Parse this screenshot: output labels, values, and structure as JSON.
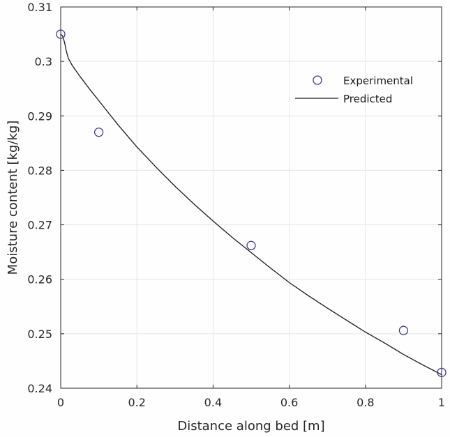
{
  "chart_data": {
    "type": "scatter",
    "title": "",
    "xlabel": "Distance along bed [m]",
    "ylabel": "Moisture content [kg/kg]",
    "xlim": [
      0,
      1
    ],
    "ylim": [
      0.24,
      0.31
    ],
    "xticks": [
      0,
      0.2,
      0.4,
      0.6,
      0.8,
      1
    ],
    "xtick_labels": [
      "0",
      "0.2",
      "0.4",
      "0.6",
      "0.8",
      "1"
    ],
    "yticks": [
      0.24,
      0.25,
      0.26,
      0.27,
      0.28,
      0.29,
      0.3,
      0.31
    ],
    "ytick_labels": [
      "0.24",
      "0.25",
      "0.26",
      "0.27",
      "0.28",
      "0.29",
      "0.3",
      "0.31"
    ],
    "grid": true,
    "legend_position": "top-right",
    "series": [
      {
        "name": "Experimental",
        "type": "scatter",
        "marker": "circle-open",
        "color": "#3b3b9a",
        "x": [
          0,
          0.1,
          0.5,
          0.9,
          1.0
        ],
        "y": [
          0.305,
          0.287,
          0.2662,
          0.2506,
          0.2429
        ]
      },
      {
        "name": "Predicted",
        "type": "line",
        "color": "#1a1a1a",
        "x": [
          0,
          0.005,
          0.01,
          0.015,
          0.02,
          0.03,
          0.05,
          0.075,
          0.1,
          0.15,
          0.2,
          0.25,
          0.3,
          0.35,
          0.4,
          0.45,
          0.5,
          0.55,
          0.6,
          0.65,
          0.7,
          0.75,
          0.8,
          0.85,
          0.9,
          0.95,
          1.0
        ],
        "y": [
          0.305,
          0.3047,
          0.3035,
          0.3018,
          0.3006,
          0.2993,
          0.2973,
          0.295,
          0.2928,
          0.2884,
          0.2843,
          0.2806,
          0.2771,
          0.2738,
          0.2707,
          0.2677,
          0.2649,
          0.2621,
          0.2594,
          0.257,
          0.2547,
          0.2525,
          0.2503,
          0.2483,
          0.2462,
          0.2443,
          0.2425
        ]
      }
    ]
  }
}
